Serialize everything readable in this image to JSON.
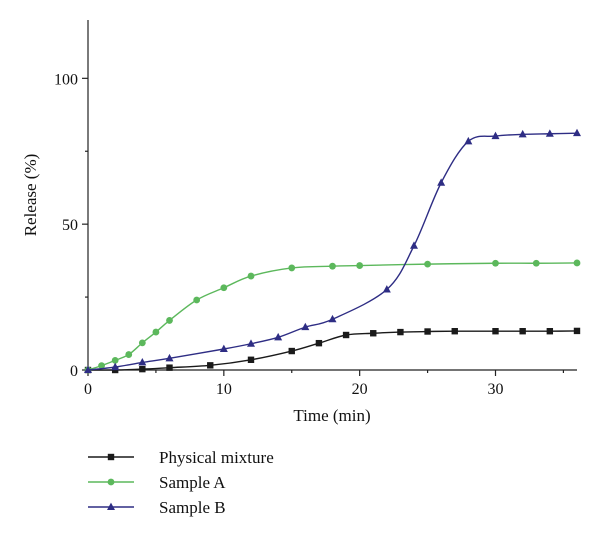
{
  "chart_data": {
    "type": "line",
    "xlabel": "Time (min)",
    "ylabel": "Release (%)",
    "xlim": [
      0,
      36
    ],
    "ylim": [
      0,
      120
    ],
    "x_ticks": [
      0,
      10,
      20,
      30
    ],
    "y_ticks": [
      0,
      50,
      100
    ],
    "x_tick_labels": [
      "0",
      "10",
      "20",
      "30"
    ],
    "y_tick_labels": [
      "0",
      "50",
      "100"
    ],
    "grid": false,
    "legend_position": "bottom-left",
    "series": [
      {
        "name": "Physical mixture",
        "color": "#1a1a1a",
        "marker": "square",
        "points": [
          [
            0,
            0
          ],
          [
            2,
            0
          ],
          [
            4,
            0.3
          ],
          [
            6,
            0.8
          ],
          [
            9,
            1.6
          ],
          [
            12,
            3.5
          ],
          [
            15,
            6.5
          ],
          [
            17,
            9.2
          ],
          [
            19,
            12.0
          ],
          [
            21,
            12.6
          ],
          [
            23,
            13.0
          ],
          [
            25,
            13.2
          ],
          [
            27,
            13.3
          ],
          [
            30,
            13.3
          ],
          [
            32,
            13.3
          ],
          [
            34,
            13.3
          ],
          [
            36,
            13.4
          ]
        ]
      },
      {
        "name": "Sample A",
        "color": "#5cb85c",
        "marker": "circle",
        "points": [
          [
            0,
            0
          ],
          [
            1,
            1.5
          ],
          [
            2,
            3.3
          ],
          [
            3,
            5.3
          ],
          [
            4,
            9.3
          ],
          [
            5,
            13.0
          ],
          [
            6,
            17.0
          ],
          [
            8,
            24.0
          ],
          [
            10,
            28.2
          ],
          [
            12,
            32.2
          ],
          [
            15,
            35.0
          ],
          [
            18,
            35.6
          ],
          [
            20,
            35.8
          ],
          [
            25,
            36.3
          ],
          [
            30,
            36.6
          ],
          [
            33,
            36.6
          ],
          [
            36,
            36.7
          ]
        ]
      },
      {
        "name": "Sample B",
        "color": "#2e2d84",
        "marker": "triangle",
        "points": [
          [
            0,
            0
          ],
          [
            2,
            1.0
          ],
          [
            4,
            2.6
          ],
          [
            6,
            4.0
          ],
          [
            10,
            7.2
          ],
          [
            12,
            9.0
          ],
          [
            14,
            11.2
          ],
          [
            16,
            14.7
          ],
          [
            18,
            17.4
          ],
          [
            22,
            27.6
          ],
          [
            24,
            42.6
          ],
          [
            26,
            64.2
          ],
          [
            28,
            78.4
          ],
          [
            30,
            80.2
          ],
          [
            32,
            80.8
          ],
          [
            34,
            81.0
          ],
          [
            36,
            81.2
          ]
        ]
      }
    ]
  }
}
